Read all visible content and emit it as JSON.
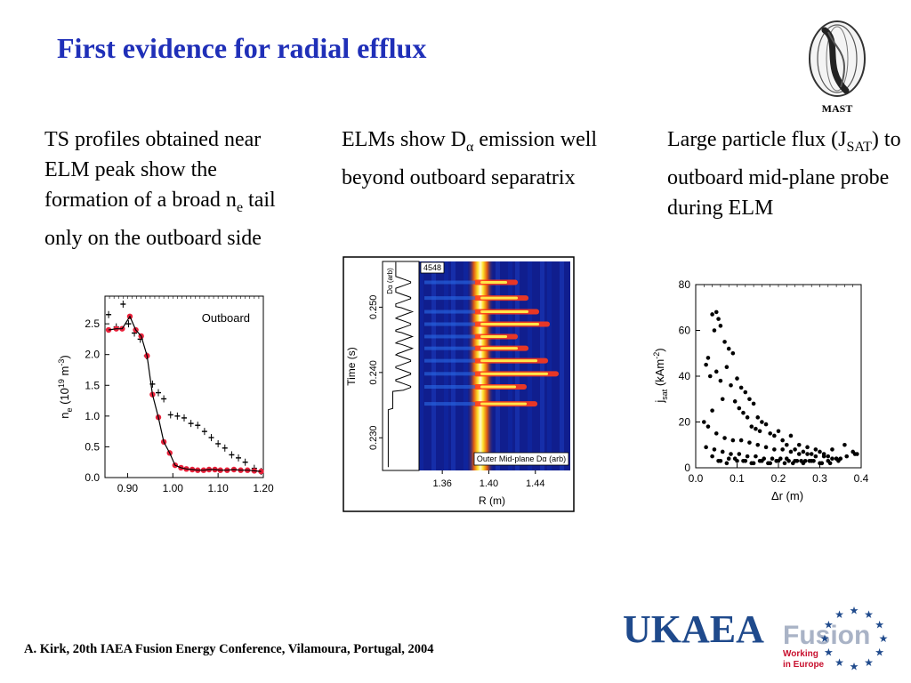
{
  "slide": {
    "title": "First evidence for radial efflux",
    "logo_label": "MAST",
    "caption": "A. Kirk, 20th IAEA Fusion Energy Conference, Vilamoura, Portugal, 2004"
  },
  "text": {
    "col1_a": "TS profiles obtained near ELM peak show the formation of a broad n",
    "col1_sub": "e",
    "col1_b": " tail only on the outboard side",
    "col2_a": "ELMs show D",
    "col2_sub": "α",
    "col2_b": " emission well beyond outboard separatrix",
    "col3_a": "Large particle flux (J",
    "col3_sub": "SAT",
    "col3_b": ") to outboard mid-plane probe during ELM"
  },
  "footer_logo": {
    "org": "UKAEA",
    "fusion": "Fusion",
    "tag1": "Working",
    "tag2": "in Europe"
  },
  "colors": {
    "title": "#1f2fb8",
    "ukaea_blue": "#1f4a8c",
    "fusion_grey": "#a9b3c6",
    "tag_red": "#c8102e",
    "probe_red": "#e8213a"
  },
  "chart_data": [
    {
      "type": "scatter",
      "id": "ne-profile",
      "legend_text": "Outboard",
      "xlabel": "",
      "ylabel": "n_e (10^19 m^-3)",
      "ylabel_parts": {
        "n": "n",
        "sub": "e",
        "a": " (10",
        "sup1": "19",
        "b": " m",
        "sup2": "-3",
        "c": ")"
      },
      "xlim": [
        0.85,
        1.2
      ],
      "ylim": [
        0.0,
        2.95
      ],
      "xticks": [
        "0.90",
        "1.00",
        "1.10",
        "1.20"
      ],
      "xtick_values": [
        0.9,
        1.0,
        1.1,
        1.2
      ],
      "yticks": [
        "0.0",
        "0.5",
        "1.0",
        "1.5",
        "2.0",
        "2.5"
      ],
      "ytick_values": [
        0.0,
        0.5,
        1.0,
        1.5,
        2.0,
        2.5
      ],
      "series": [
        {
          "style": "black-errorbar",
          "x": [
            0.858,
            0.875,
            0.89,
            0.902,
            0.915,
            0.928,
            0.942,
            0.955,
            0.968,
            0.98,
            0.995,
            1.01,
            1.025,
            1.04,
            1.055,
            1.07,
            1.085,
            1.1,
            1.115,
            1.13,
            1.145,
            1.16,
            1.18,
            1.195
          ],
          "y": [
            2.65,
            2.45,
            2.82,
            2.5,
            2.35,
            2.25,
            1.98,
            1.52,
            1.38,
            1.28,
            1.02,
            1.0,
            0.97,
            0.88,
            0.85,
            0.75,
            0.65,
            0.55,
            0.48,
            0.37,
            0.32,
            0.25,
            0.15,
            0.1
          ]
        },
        {
          "style": "red-dot",
          "x": [
            0.858,
            0.875,
            0.888,
            0.905,
            0.918,
            0.93,
            0.943,
            0.955,
            0.968,
            0.98,
            0.993,
            1.005,
            1.018,
            1.03,
            1.043,
            1.055,
            1.068,
            1.08,
            1.093,
            1.105,
            1.12,
            1.135,
            1.15,
            1.165,
            1.18,
            1.195
          ],
          "y": [
            2.4,
            2.42,
            2.42,
            2.62,
            2.4,
            2.3,
            1.98,
            1.35,
            0.98,
            0.58,
            0.4,
            0.2,
            0.16,
            0.14,
            0.13,
            0.12,
            0.12,
            0.13,
            0.13,
            0.12,
            0.12,
            0.13,
            0.12,
            0.12,
            0.11,
            0.1
          ]
        }
      ]
    },
    {
      "type": "heatmap",
      "id": "dalpha-map",
      "shot_label": "4548",
      "inset_label": "Dα (arb)",
      "map_label": "Outer Mid-plane Dα (arb)",
      "xlabel": "R (m)",
      "ylabel": "Time (s)",
      "xlim": [
        1.34,
        1.47
      ],
      "ylim": [
        0.225,
        0.257
      ],
      "xticks": [
        "1.36",
        "1.40",
        "1.44"
      ],
      "xtick_values": [
        1.36,
        1.4,
        1.44
      ],
      "yticks": [
        "0.230",
        "0.240",
        "0.250"
      ],
      "ytick_values": [
        0.23,
        0.24,
        0.25
      ],
      "elm_times": [
        0.2538,
        0.2514,
        0.2493,
        0.2474,
        0.2455,
        0.2437,
        0.2418,
        0.2398,
        0.2378,
        0.2352
      ],
      "bright_band_center_R": 1.402
    },
    {
      "type": "scatter",
      "id": "jsat-flux",
      "xlabel": "Δr (m)",
      "ylabel": "j_sat (kAm^-2)",
      "ylabel_parts": {
        "j": "j",
        "sub": "sat",
        "a": " (kAm",
        "sup": "-2",
        "b": ")"
      },
      "xlim": [
        0.0,
        0.4
      ],
      "ylim": [
        0,
        80
      ],
      "xticks": [
        "0.0",
        "0.1",
        "0.2",
        "0.3",
        "0.4"
      ],
      "xtick_values": [
        0.0,
        0.1,
        0.2,
        0.3,
        0.4
      ],
      "yticks": [
        "0",
        "20",
        "40",
        "60",
        "80"
      ],
      "ytick_values": [
        0,
        20,
        40,
        60,
        80
      ],
      "points": {
        "x": [
          0.04,
          0.05,
          0.055,
          0.06,
          0.045,
          0.07,
          0.03,
          0.025,
          0.08,
          0.09,
          0.05,
          0.035,
          0.075,
          0.1,
          0.11,
          0.12,
          0.06,
          0.085,
          0.095,
          0.13,
          0.14,
          0.15,
          0.16,
          0.065,
          0.04,
          0.105,
          0.115,
          0.125,
          0.135,
          0.145,
          0.155,
          0.17,
          0.18,
          0.19,
          0.2,
          0.21,
          0.22,
          0.23,
          0.24,
          0.25,
          0.26,
          0.27,
          0.28,
          0.29,
          0.3,
          0.31,
          0.32,
          0.33,
          0.34,
          0.36,
          0.38,
          0.39,
          0.02,
          0.03,
          0.05,
          0.07,
          0.09,
          0.11,
          0.13,
          0.15,
          0.17,
          0.19,
          0.21,
          0.23,
          0.25,
          0.27,
          0.29,
          0.31,
          0.33,
          0.35,
          0.025,
          0.045,
          0.065,
          0.085,
          0.105,
          0.125,
          0.145,
          0.165,
          0.185,
          0.205,
          0.225,
          0.245,
          0.265,
          0.285,
          0.305,
          0.325,
          0.345,
          0.365,
          0.385,
          0.06,
          0.08,
          0.1,
          0.12,
          0.14,
          0.16,
          0.18,
          0.2,
          0.22,
          0.24,
          0.26,
          0.28,
          0.3,
          0.32,
          0.34,
          0.04,
          0.055,
          0.075,
          0.095,
          0.115,
          0.135,
          0.155,
          0.175,
          0.195,
          0.215,
          0.235,
          0.255,
          0.275
        ],
        "y": [
          67,
          68,
          65,
          62,
          60,
          55,
          48,
          45,
          52,
          50,
          42,
          40,
          44,
          39,
          35,
          33,
          38,
          36,
          29,
          30,
          28,
          22,
          20,
          30,
          25,
          26,
          24,
          22,
          18,
          17,
          16,
          19,
          15,
          14,
          16,
          12,
          10,
          14,
          8,
          10,
          7,
          9,
          6,
          8,
          7,
          6,
          5,
          8,
          4,
          10,
          7,
          6,
          20,
          18,
          15,
          13,
          12,
          12,
          11,
          10,
          9,
          8,
          8,
          7,
          6,
          6,
          5,
          5,
          4,
          4,
          9,
          8,
          7,
          6,
          6,
          5,
          5,
          4,
          4,
          4,
          3,
          3,
          3,
          3,
          2,
          2,
          3,
          5,
          6,
          3,
          4,
          3,
          3,
          2,
          3,
          2,
          3,
          4,
          3,
          2,
          3,
          2,
          3,
          4,
          5,
          3,
          2,
          4,
          3,
          2,
          3,
          2,
          3,
          2,
          2,
          3,
          3
        ]
      }
    }
  ]
}
